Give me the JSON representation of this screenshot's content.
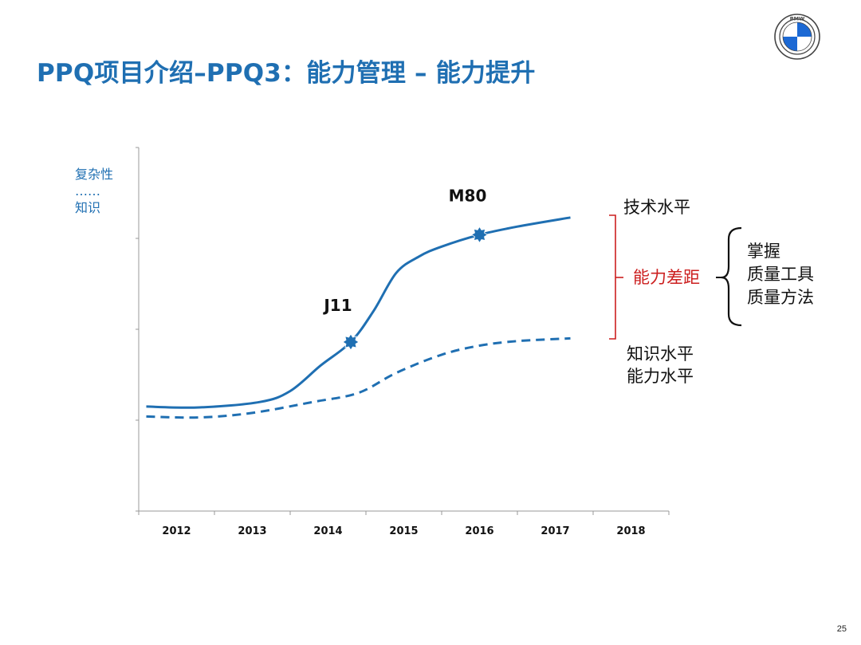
{
  "title": "PPQ项目介绍–PPQ3：能力管理 – 能力提升",
  "logo": {
    "text": "BMW",
    "colors": {
      "ring": "#444444",
      "blue": "#1c69d4",
      "white": "#ffffff"
    }
  },
  "page_number": "25",
  "colors": {
    "title": "#1f6fb2",
    "line": "#1f6fb2",
    "gap": "#cc1f1f",
    "text": "#111111",
    "axis": "#999999"
  },
  "annotations": {
    "y_axis_label": [
      "复杂性",
      "……",
      "知识"
    ],
    "upper_line_label": "技术水平",
    "lower_line_label": [
      "知识水平",
      "能力水平"
    ],
    "gap_label": "能力差距",
    "brace_items": [
      "掌握",
      "质量工具",
      "质量方法"
    ]
  },
  "chart_data": {
    "type": "line",
    "categories": [
      "2012",
      "2013",
      "2014",
      "2015",
      "2016",
      "2017",
      "2018"
    ],
    "xlim": [
      0,
      7
    ],
    "ylim": [
      0,
      4
    ],
    "y_ticks": [
      0,
      1,
      2,
      3,
      4
    ],
    "grid": false,
    "series": [
      {
        "style": "solid",
        "points": [
          [
            0.1,
            1.15
          ],
          [
            0.8,
            1.14
          ],
          [
            1.6,
            1.2
          ],
          [
            2.0,
            1.32
          ],
          [
            2.4,
            1.6
          ],
          [
            2.8,
            1.86
          ],
          [
            3.1,
            2.2
          ],
          [
            3.4,
            2.62
          ],
          [
            3.7,
            2.8
          ],
          [
            4.0,
            2.91
          ],
          [
            4.5,
            3.04
          ],
          [
            5.0,
            3.13
          ],
          [
            5.7,
            3.23
          ]
        ]
      },
      {
        "style": "dashed",
        "points": [
          [
            0.1,
            1.04
          ],
          [
            0.8,
            1.03
          ],
          [
            1.5,
            1.08
          ],
          [
            2.3,
            1.2
          ],
          [
            2.9,
            1.3
          ],
          [
            3.4,
            1.52
          ],
          [
            4.0,
            1.72
          ],
          [
            4.5,
            1.82
          ],
          [
            5.0,
            1.87
          ],
          [
            5.7,
            1.9
          ]
        ]
      }
    ],
    "markers": [
      {
        "label": "J11",
        "x": 2.8,
        "y": 1.86
      },
      {
        "label": "M80",
        "x": 4.5,
        "y": 3.04
      }
    ]
  }
}
